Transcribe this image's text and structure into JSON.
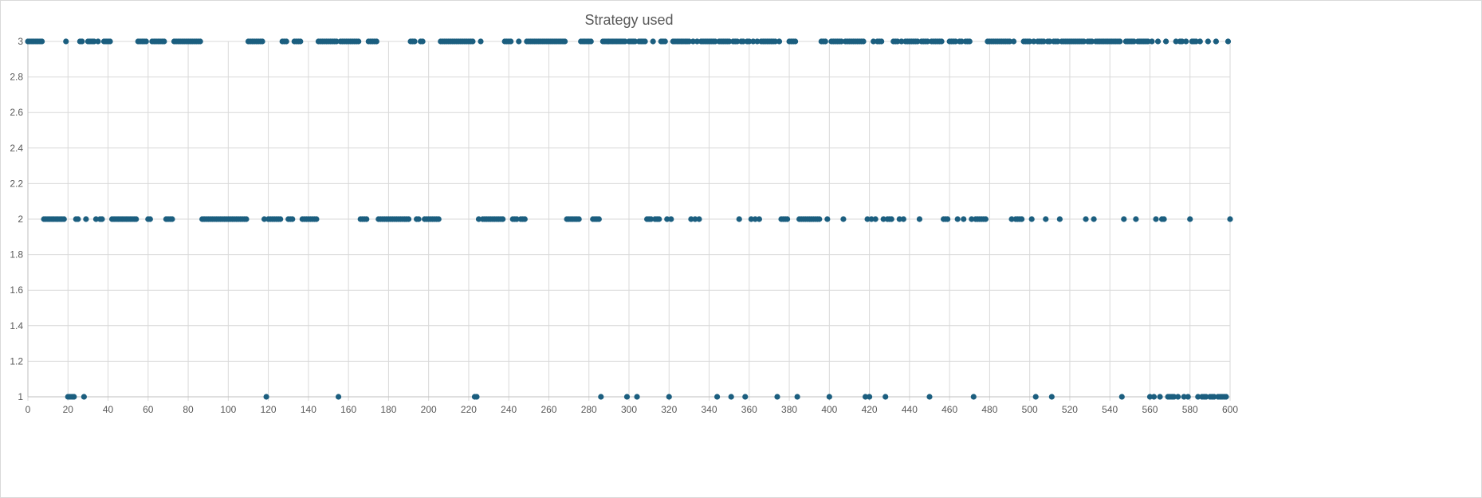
{
  "chart_data": {
    "type": "scatter",
    "title": "Strategy used",
    "xlabel": "",
    "ylabel": "",
    "xlim": [
      0,
      600
    ],
    "ylim": [
      1,
      3
    ],
    "x_ticks": [
      0,
      20,
      40,
      60,
      80,
      100,
      120,
      140,
      160,
      180,
      200,
      220,
      240,
      260,
      280,
      300,
      320,
      340,
      360,
      380,
      400,
      420,
      440,
      460,
      480,
      500,
      520,
      540,
      560,
      580,
      600
    ],
    "y_ticks": [
      "1",
      "1.2",
      "1.4",
      "1.6",
      "1.8",
      "2",
      "2.2",
      "2.4",
      "2.6",
      "2.8",
      "3"
    ],
    "grid": true,
    "legend": "none",
    "marker_color": "#1b5e7f",
    "grid_color": "#d9d9d9",
    "x_start": 0,
    "x_step": 1,
    "y": [
      3,
      3,
      3,
      3,
      3,
      3,
      3,
      3,
      2,
      2,
      2,
      2,
      2,
      2,
      2,
      2,
      2,
      2,
      2,
      3,
      1,
      1,
      1,
      1,
      2,
      2,
      3,
      3,
      1,
      2,
      3,
      3,
      3,
      3,
      2,
      3,
      2,
      2,
      3,
      3,
      3,
      3,
      2,
      2,
      2,
      2,
      2,
      2,
      2,
      2,
      2,
      2,
      2,
      2,
      2,
      3,
      3,
      3,
      3,
      3,
      2,
      2,
      3,
      3,
      3,
      3,
      3,
      3,
      3,
      2,
      2,
      2,
      2,
      3,
      3,
      3,
      3,
      3,
      3,
      3,
      3,
      3,
      3,
      3,
      3,
      3,
      3,
      2,
      2,
      2,
      2,
      2,
      2,
      2,
      2,
      2,
      2,
      2,
      2,
      2,
      2,
      2,
      2,
      2,
      2,
      2,
      2,
      2,
      2,
      2,
      3,
      3,
      3,
      3,
      3,
      3,
      3,
      3,
      2,
      1,
      2,
      2,
      2,
      2,
      2,
      2,
      2,
      3,
      3,
      3,
      2,
      2,
      2,
      3,
      3,
      3,
      3,
      2,
      2,
      2,
      2,
      2,
      2,
      2,
      2,
      3,
      3,
      3,
      3,
      3,
      3,
      3,
      3,
      3,
      3,
      1,
      3,
      3,
      3,
      3,
      3,
      3,
      3,
      3,
      3,
      3,
      2,
      2,
      2,
      2,
      3,
      3,
      3,
      3,
      3,
      2,
      2,
      2,
      2,
      2,
      2,
      2,
      2,
      2,
      2,
      2,
      2,
      2,
      2,
      2,
      2,
      3,
      3,
      3,
      2,
      2,
      3,
      3,
      2,
      2,
      2,
      2,
      2,
      2,
      2,
      2,
      3,
      3,
      3,
      3,
      3,
      3,
      3,
      3,
      3,
      3,
      3,
      3,
      3,
      3,
      3,
      3,
      3,
      1,
      1,
      2,
      3,
      2,
      2,
      2,
      2,
      2,
      2,
      2,
      2,
      2,
      2,
      2,
      3,
      3,
      3,
      3,
      2,
      2,
      2,
      3,
      2,
      2,
      2,
      3,
      3,
      3,
      3,
      3,
      3,
      3,
      3,
      3,
      3,
      3,
      3,
      3,
      3,
      3,
      3,
      3,
      3,
      3,
      3,
      2,
      2,
      2,
      2,
      2,
      2,
      2,
      3,
      3,
      3,
      3,
      3,
      3,
      2,
      2,
      2,
      2,
      1,
      3,
      3,
      3,
      3,
      3,
      3,
      3,
      3,
      3,
      3,
      3,
      3,
      1,
      3,
      3,
      3,
      3,
      1,
      3,
      3,
      3,
      3,
      2,
      2,
      2,
      3,
      2,
      2,
      2,
      3,
      3,
      3,
      2,
      1,
      2,
      3,
      3,
      3,
      3,
      3,
      3,
      3,
      3,
      3,
      2,
      3,
      2,
      3,
      2,
      3,
      3,
      3,
      3,
      3,
      3,
      3,
      3,
      1,
      3,
      3,
      3,
      3,
      3,
      3,
      1,
      3,
      3,
      3,
      2,
      3,
      3,
      1,
      3,
      3,
      2,
      3,
      2,
      3,
      2,
      3,
      3,
      3,
      3,
      3,
      3,
      3,
      3,
      1,
      3,
      2,
      2,
      2,
      2,
      3,
      3,
      3,
      3,
      1,
      2,
      2,
      2,
      2,
      2,
      2,
      2,
      2,
      2,
      2,
      2,
      3,
      3,
      3,
      2,
      1,
      3,
      3,
      3,
      3,
      3,
      3,
      2,
      3,
      3,
      3,
      3,
      3,
      3,
      3,
      3,
      3,
      3,
      1,
      2,
      1,
      2,
      3,
      2,
      3,
      3,
      3,
      2,
      1,
      2,
      2,
      2,
      3,
      3,
      3,
      2,
      3,
      2,
      3,
      3,
      3,
      3,
      3,
      3,
      3,
      2,
      3,
      3,
      3,
      3,
      1,
      3,
      3,
      3,
      3,
      3,
      3,
      2,
      2,
      2,
      3,
      3,
      3,
      3,
      2,
      3,
      3,
      2,
      3,
      3,
      3,
      2,
      1,
      2,
      2,
      2,
      2,
      2,
      2,
      3,
      3,
      3,
      3,
      3,
      3,
      3,
      3,
      3,
      3,
      3,
      3,
      2,
      3,
      2,
      2,
      2,
      2,
      3,
      3,
      3,
      3,
      2,
      3,
      1,
      3,
      3,
      3,
      3,
      2,
      3,
      3,
      1,
      3,
      3,
      3,
      2,
      3,
      3,
      3,
      3,
      3,
      3,
      3,
      3,
      3,
      3,
      3,
      3,
      2,
      3,
      3,
      3,
      2,
      3,
      3,
      3,
      3,
      3,
      3,
      3,
      3,
      3,
      3,
      3,
      3,
      3,
      1,
      2,
      3,
      3,
      3,
      3,
      3,
      2,
      3,
      3,
      3,
      3,
      3,
      3,
      1,
      3,
      1,
      2,
      3,
      1,
      2,
      2,
      3,
      1,
      1,
      1,
      1,
      3,
      1,
      3,
      3,
      1,
      3,
      1,
      2,
      3,
      3,
      3,
      1,
      3,
      1,
      1,
      1,
      3,
      1,
      1,
      1,
      3,
      1,
      1,
      1,
      1,
      1,
      3,
      2
    ]
  }
}
